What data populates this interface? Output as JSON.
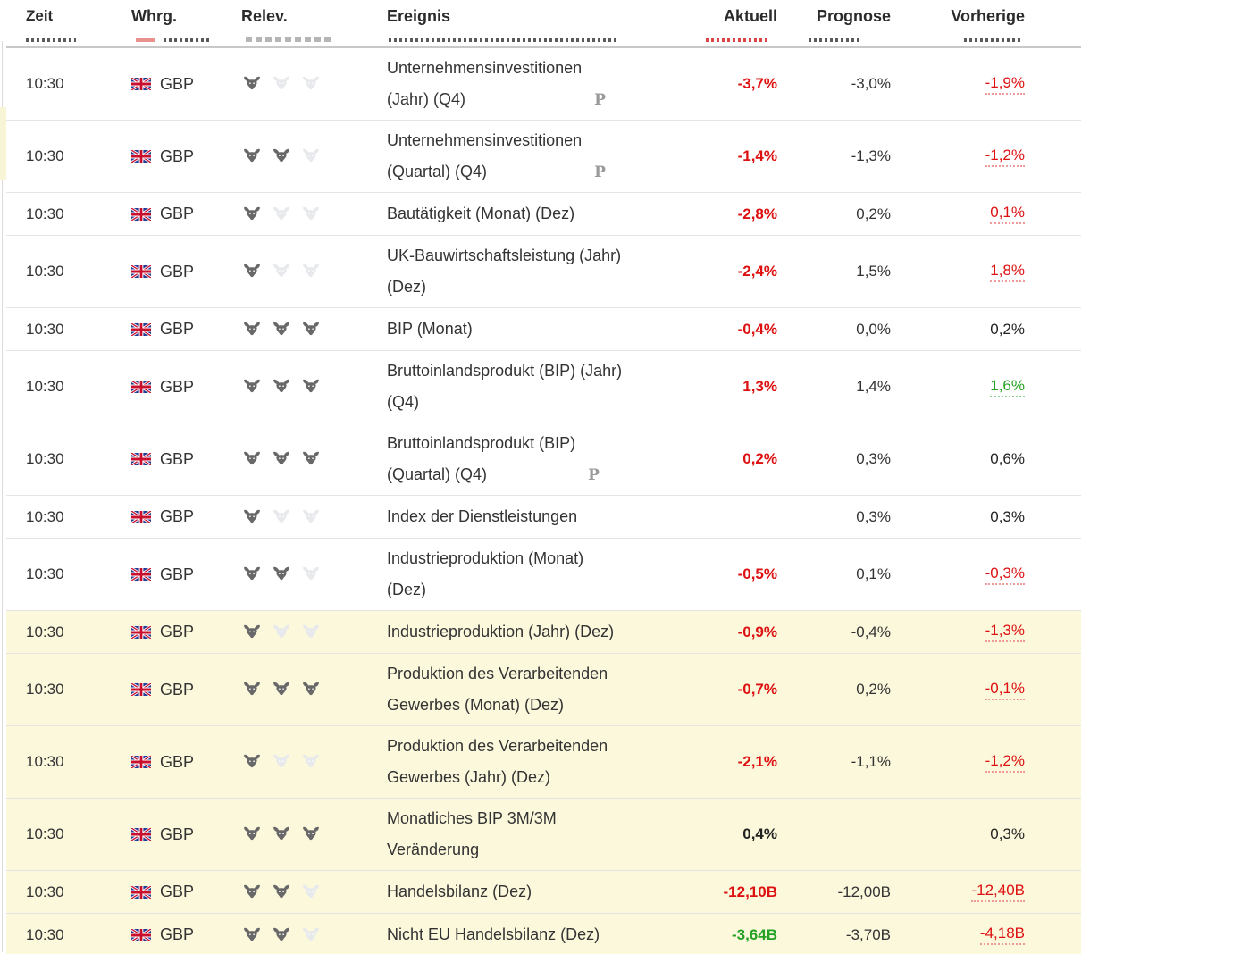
{
  "table": {
    "columns": {
      "time": "Zeit",
      "currency": "Whrg.",
      "relevance": "Relev.",
      "event": "Ereignis",
      "actual": "Aktuell",
      "forecast": "Prognose",
      "previous": "Vorherige"
    },
    "rows": [
      {
        "time": "10:30",
        "currency": "GBP",
        "relevance": 1,
        "event_lines": [
          "Unternehmensinvestitionen",
          "(Jahr) (Q4)"
        ],
        "preliminary": true,
        "actual": {
          "text": "-3,7%",
          "color": "red"
        },
        "forecast": "-3,0%",
        "previous": {
          "text": "-1,9%",
          "style": "red_dotted"
        },
        "highlighted": false,
        "lines": 2
      },
      {
        "time": "10:30",
        "currency": "GBP",
        "relevance": 2,
        "event_lines": [
          "Unternehmensinvestitionen",
          "(Quartal) (Q4)"
        ],
        "preliminary": true,
        "actual": {
          "text": "-1,4%",
          "color": "red"
        },
        "forecast": "-1,3%",
        "previous": {
          "text": "-1,2%",
          "style": "red_dotted"
        },
        "highlighted": false,
        "lines": 2
      },
      {
        "time": "10:30",
        "currency": "GBP",
        "relevance": 1,
        "event_lines": [
          "Bautätigkeit (Monat) (Dez)"
        ],
        "preliminary": false,
        "actual": {
          "text": "-2,8%",
          "color": "red"
        },
        "forecast": "0,2%",
        "previous": {
          "text": "0,1%",
          "style": "red_dotted"
        },
        "highlighted": false,
        "lines": 1
      },
      {
        "time": "10:30",
        "currency": "GBP",
        "relevance": 1,
        "event_lines": [
          "UK-Bauwirtschaftsleistung (Jahr)",
          "(Dez)"
        ],
        "preliminary": false,
        "actual": {
          "text": "-2,4%",
          "color": "red"
        },
        "forecast": "1,5%",
        "previous": {
          "text": "1,8%",
          "style": "red_dotted"
        },
        "highlighted": false,
        "lines": 2
      },
      {
        "time": "10:30",
        "currency": "GBP",
        "relevance": 3,
        "event_lines": [
          "BIP (Monat)"
        ],
        "preliminary": false,
        "actual": {
          "text": "-0,4%",
          "color": "red"
        },
        "forecast": "0,0%",
        "previous": {
          "text": "0,2%",
          "style": "plain"
        },
        "highlighted": false,
        "lines": 1
      },
      {
        "time": "10:30",
        "currency": "GBP",
        "relevance": 3,
        "event_lines": [
          "Bruttoinlandsprodukt (BIP) (Jahr)",
          "(Q4)"
        ],
        "preliminary": false,
        "actual": {
          "text": "1,3%",
          "color": "red"
        },
        "forecast": "1,4%",
        "previous": {
          "text": "1,6%",
          "style": "green_dotted"
        },
        "highlighted": false,
        "lines": 2
      },
      {
        "time": "10:30",
        "currency": "GBP",
        "relevance": 3,
        "event_lines": [
          "Bruttoinlandsprodukt (BIP)",
          "(Quartal) (Q4)"
        ],
        "preliminary": true,
        "actual": {
          "text": "0,2%",
          "color": "red"
        },
        "forecast": "0,3%",
        "previous": {
          "text": "0,6%",
          "style": "plain"
        },
        "highlighted": false,
        "lines": 2
      },
      {
        "time": "10:30",
        "currency": "GBP",
        "relevance": 1,
        "event_lines": [
          "Index der Dienstleistungen"
        ],
        "preliminary": false,
        "actual": {
          "text": "",
          "color": "none"
        },
        "forecast": "0,3%",
        "previous": {
          "text": "0,3%",
          "style": "plain"
        },
        "highlighted": false,
        "lines": 1
      },
      {
        "time": "10:30",
        "currency": "GBP",
        "relevance": 2,
        "event_lines": [
          "Industrieproduktion (Monat)",
          "(Dez)"
        ],
        "preliminary": false,
        "actual": {
          "text": "-0,5%",
          "color": "red"
        },
        "forecast": "0,1%",
        "previous": {
          "text": "-0,3%",
          "style": "red_dotted"
        },
        "highlighted": false,
        "lines": 2
      },
      {
        "time": "10:30",
        "currency": "GBP",
        "relevance": 1,
        "event_lines": [
          "Industrieproduktion (Jahr) (Dez)"
        ],
        "preliminary": false,
        "actual": {
          "text": "-0,9%",
          "color": "red"
        },
        "forecast": "-0,4%",
        "previous": {
          "text": "-1,3%",
          "style": "red_dotted"
        },
        "highlighted": true,
        "lines": 1
      },
      {
        "time": "10:30",
        "currency": "GBP",
        "relevance": 3,
        "event_lines": [
          "Produktion des Verarbeitenden",
          "Gewerbes (Monat) (Dez)"
        ],
        "preliminary": false,
        "actual": {
          "text": "-0,7%",
          "color": "red"
        },
        "forecast": "0,2%",
        "previous": {
          "text": "-0,1%",
          "style": "red_dotted"
        },
        "highlighted": true,
        "lines": 2
      },
      {
        "time": "10:30",
        "currency": "GBP",
        "relevance": 1,
        "event_lines": [
          "Produktion des Verarbeitenden",
          "Gewerbes (Jahr) (Dez)"
        ],
        "preliminary": false,
        "actual": {
          "text": "-2,1%",
          "color": "red"
        },
        "forecast": "-1,1%",
        "previous": {
          "text": "-1,2%",
          "style": "red_dotted"
        },
        "highlighted": true,
        "lines": 2
      },
      {
        "time": "10:30",
        "currency": "GBP",
        "relevance": 3,
        "event_lines": [
          "Monatliches BIP 3M/3M",
          "Veränderung"
        ],
        "preliminary": false,
        "actual": {
          "text": "0,4%",
          "color": "black"
        },
        "forecast": "",
        "previous": {
          "text": "0,3%",
          "style": "plain"
        },
        "highlighted": true,
        "lines": 2
      },
      {
        "time": "10:30",
        "currency": "GBP",
        "relevance": 2,
        "event_lines": [
          "Handelsbilanz (Dez)"
        ],
        "preliminary": false,
        "actual": {
          "text": "-12,10B",
          "color": "red"
        },
        "forecast": "-12,00B",
        "previous": {
          "text": "-12,40B",
          "style": "red_dotted"
        },
        "highlighted": true,
        "lines": 1
      },
      {
        "time": "10:30",
        "currency": "GBP",
        "relevance": 2,
        "event_lines": [
          "Nicht EU Handelsbilanz (Dez)"
        ],
        "preliminary": false,
        "actual": {
          "text": "-3,64B",
          "color": "green"
        },
        "forecast": "-3,70B",
        "previous": {
          "text": "-4,18B",
          "style": "red_dotted"
        },
        "highlighted": true,
        "lines": 1
      }
    ],
    "preliminary_marker": "P"
  },
  "icons": {
    "relevance": "bull-icon",
    "currency_flag": "uk-flag-icon",
    "preliminary": "preliminary-p-icon"
  },
  "colors": {
    "negative_red": "#DD1111",
    "positive_green": "#23A123",
    "neutral_dark": "#222222",
    "text": "#333333",
    "muted_gray": "#999999",
    "highlight_row": "#FBF8DC",
    "bull_active": "#686868",
    "bull_inactive": "#E7E9EC",
    "divider": "#E4E4E4",
    "header_border": "#C8C8C8"
  }
}
